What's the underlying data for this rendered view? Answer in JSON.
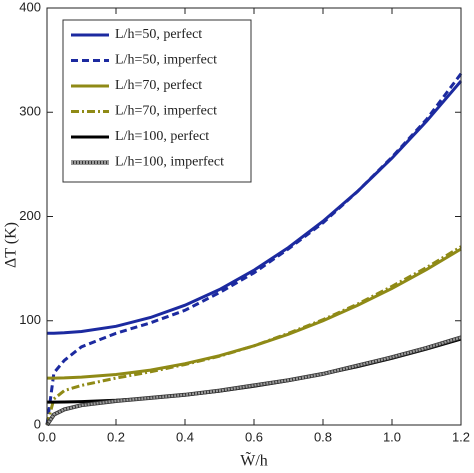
{
  "chart_data": {
    "type": "line",
    "xlabel": "W̃/h",
    "ylabel": "ΔT (K)",
    "x": [
      0,
      0.02,
      0.05,
      0.1,
      0.2,
      0.3,
      0.4,
      0.5,
      0.6,
      0.7,
      0.8,
      0.9,
      1.0,
      1.1,
      1.2
    ],
    "series": [
      {
        "name": "L/h=50, perfect",
        "color": "#1c2aa0",
        "dash": "solid",
        "values": [
          88,
          88.1,
          88.4,
          89.7,
          94.7,
          103.1,
          114.9,
          130,
          148.5,
          170.3,
          195.5,
          224.1,
          256,
          291.3,
          330
        ]
      },
      {
        "name": "L/h=50, imperfect",
        "color": "#1c2aa0",
        "dash": "dashed",
        "values": [
          0,
          50,
          62,
          75,
          88,
          98,
          110,
          127,
          146,
          169,
          194,
          224,
          257,
          293,
          337
        ]
      },
      {
        "name": "L/h=70, perfect",
        "color": "#8f8a16",
        "dash": "solid",
        "values": [
          45,
          45,
          45.2,
          45.9,
          48.4,
          52.7,
          58.8,
          66.5,
          76,
          87.1,
          100,
          114.7,
          131,
          149.1,
          168.8
        ]
      },
      {
        "name": "L/h=70, imperfect",
        "color": "#8f8a16",
        "dash": "dashdot",
        "values": [
          0,
          25,
          33,
          38,
          45,
          51,
          58,
          66,
          76,
          88,
          101,
          116,
          133,
          151,
          171
        ]
      },
      {
        "name": "L/h=100, perfect",
        "color": "#000000",
        "dash": "solid",
        "values": [
          22,
          22,
          22.1,
          22.4,
          23.7,
          25.8,
          28.7,
          32.5,
          37.1,
          42.6,
          48.9,
          56,
          64,
          72.8,
          82.5
        ]
      },
      {
        "name": "L/h=100, imperfect",
        "color": "#9a9a9a",
        "dash": "dotted",
        "values": [
          0,
          10,
          15,
          19,
          23,
          26,
          29,
          33,
          38,
          43,
          49,
          57,
          65,
          74,
          84
        ]
      }
    ],
    "xlim": [
      0,
      1.2
    ],
    "ylim": [
      0,
      400
    ],
    "xticks": [
      {
        "value": 0,
        "label": "0.0"
      },
      0.2,
      0.4,
      0.6,
      0.8,
      {
        "value": 1,
        "label": "1.0"
      },
      1.2
    ],
    "yticks": [
      0,
      100,
      200,
      300,
      400
    ],
    "legend": "upper left",
    "grid": false
  }
}
